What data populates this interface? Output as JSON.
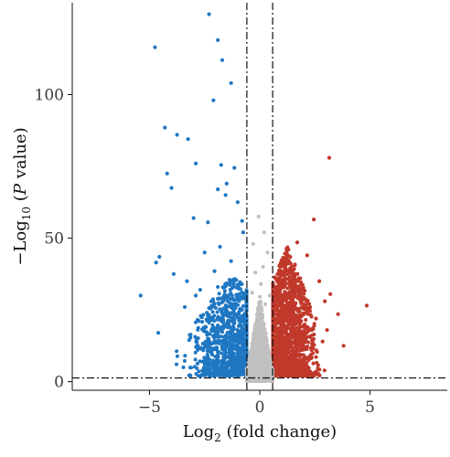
{
  "chart_data": {
    "type": "scatter",
    "title": "",
    "xlabel": {
      "prefix": "Log",
      "sub": "2",
      "suffix": " (fold change)"
    },
    "ylabel": {
      "prefix": "−Log",
      "sub": "10",
      "mid": " (",
      "italic": "P",
      "suffix": " value)"
    },
    "xlim": [
      -8.5,
      8.5
    ],
    "ylim": [
      -3,
      132
    ],
    "x_ticks": [
      -5,
      0,
      5
    ],
    "x_tick_labels": [
      "−5",
      "0",
      "5"
    ],
    "y_ticks": [
      0,
      50,
      100
    ],
    "y_tick_labels": [
      "0",
      "50",
      "100"
    ],
    "grid": false,
    "legend": "none",
    "thresholds": {
      "log2fc": [
        -0.585,
        0.585
      ],
      "neg_log10_p": 1.3
    },
    "colors": {
      "down": "#1f77c2",
      "up": "#c0392b",
      "ns": "#c0c0c0",
      "axis": "#111111"
    },
    "series": [
      {
        "key": "down",
        "points": [
          [
            -2.3,
            128
          ],
          [
            -1.9,
            119
          ],
          [
            -4.75,
            116.5
          ],
          [
            -1.7,
            112
          ],
          [
            -1.3,
            104
          ],
          [
            -2.1,
            98
          ],
          [
            -4.3,
            88.5
          ],
          [
            -3.75,
            86
          ],
          [
            -3.25,
            84.5
          ],
          [
            -2.9,
            76
          ],
          [
            -1.75,
            75.5
          ],
          [
            -4.2,
            72.5
          ],
          [
            -1.15,
            74.5
          ],
          [
            -1.5,
            69
          ],
          [
            -4.0,
            67.5
          ],
          [
            -1.9,
            67
          ],
          [
            -1.55,
            65
          ],
          [
            -1.0,
            62.5
          ],
          [
            -3.0,
            57
          ],
          [
            -2.35,
            55.5
          ],
          [
            -0.8,
            56
          ],
          [
            -0.75,
            52
          ],
          [
            -4.55,
            43.5
          ],
          [
            -4.7,
            41.5
          ],
          [
            -5.4,
            30
          ],
          [
            -3.9,
            37.5
          ],
          [
            -2.5,
            45
          ],
          [
            -1.8,
            47
          ],
          [
            -1.3,
            42
          ],
          [
            -2.05,
            38.5
          ],
          [
            -3.3,
            35
          ],
          [
            -4.6,
            17
          ],
          [
            -3.2,
            14.5
          ],
          [
            -3.4,
            26
          ],
          [
            -2.9,
            30
          ],
          [
            -2.7,
            32
          ],
          [
            -1.9,
            33
          ],
          [
            -2.2,
            28
          ]
        ]
      },
      {
        "key": "up",
        "points": [
          [
            3.15,
            78
          ],
          [
            4.85,
            26.5
          ],
          [
            3.8,
            12.5
          ],
          [
            3.55,
            23.5
          ],
          [
            3.2,
            30.5
          ],
          [
            2.45,
            56.5
          ],
          [
            2.15,
            44
          ],
          [
            2.7,
            35
          ],
          [
            2.95,
            28
          ],
          [
            3.05,
            18
          ],
          [
            2.55,
            22
          ],
          [
            2.85,
            14
          ],
          [
            2.35,
            11
          ],
          [
            1.7,
            48.5
          ],
          [
            1.3,
            46
          ],
          [
            1.05,
            41
          ]
        ]
      },
      {
        "key": "ns",
        "points": [
          [
            -0.05,
            57.5
          ],
          [
            0.2,
            52
          ],
          [
            -0.3,
            48
          ],
          [
            0.35,
            45
          ],
          [
            0.15,
            40
          ],
          [
            -0.2,
            38
          ],
          [
            0.05,
            34
          ],
          [
            -0.35,
            31
          ],
          [
            0.45,
            30
          ],
          [
            0.25,
            27
          ]
        ]
      }
    ],
    "clusters": [
      {
        "key": "down",
        "x_range": [
          -4.6,
          -0.6
        ],
        "y_max_at_center": 38,
        "y_min": 2,
        "count": 1100,
        "center": -1.2,
        "spread": 0.85
      },
      {
        "key": "up",
        "x_range": [
          0.6,
          3.4
        ],
        "y_max_at_center": 48,
        "y_min": 2,
        "count": 1500,
        "center": 1.25,
        "spread": 0.55
      },
      {
        "key": "ns",
        "x_range": [
          -0.58,
          0.58
        ],
        "y_max_at_center": 30,
        "y_min": 0.2,
        "count": 1300,
        "center": 0.0,
        "spread": 0.3
      }
    ]
  }
}
